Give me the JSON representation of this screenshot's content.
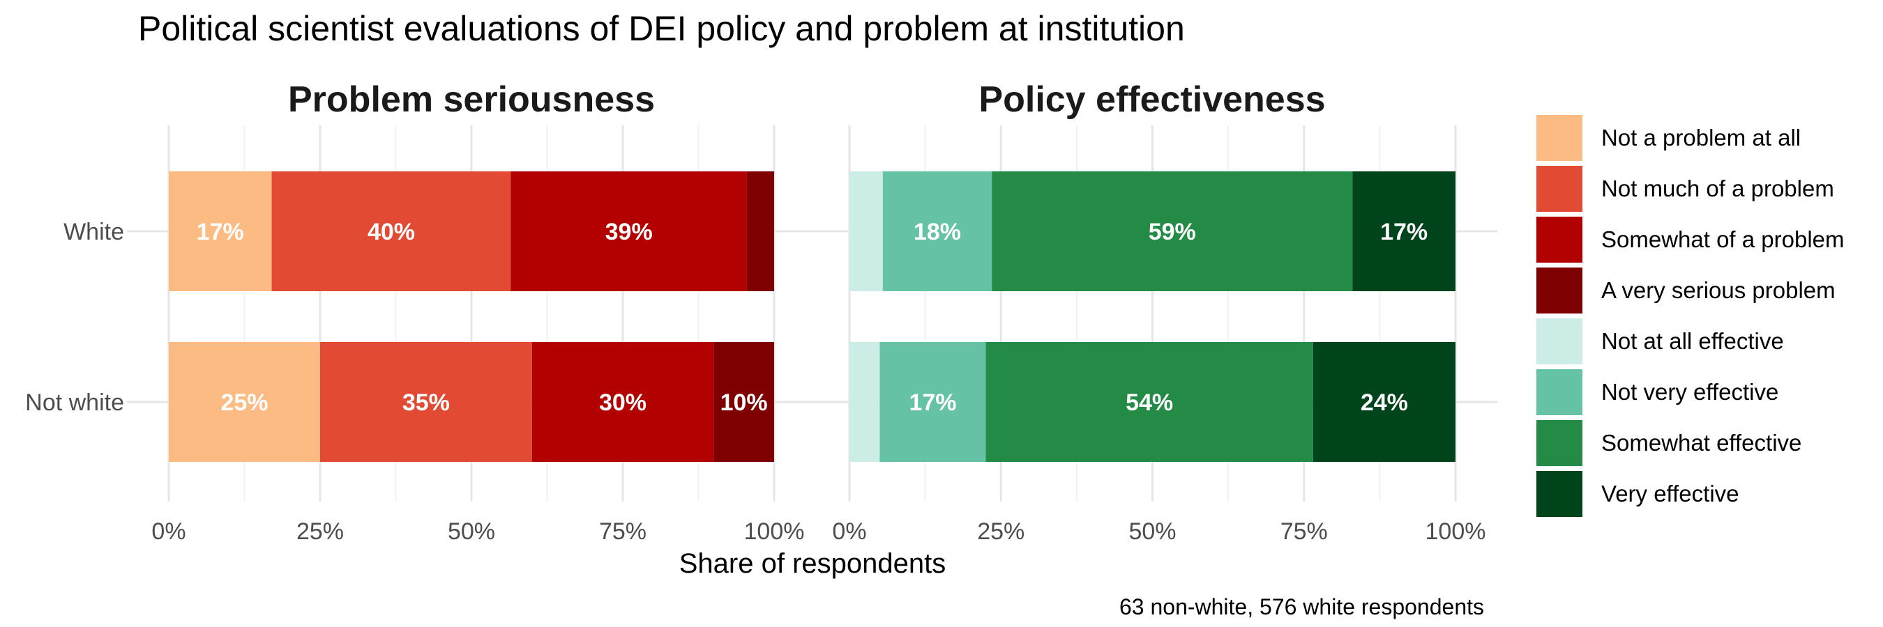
{
  "chart_data": {
    "type": "bar",
    "orientation": "horizontal",
    "stacked": true,
    "title": "Political scientist evaluations of DEI policy and problem at institution",
    "xlabel": "Share of respondents",
    "caption": "63 non-white, 576 white respondents",
    "xlim": [
      0,
      1
    ],
    "xticks": [
      "0%",
      "25%",
      "50%",
      "75%",
      "100%"
    ],
    "grid": true,
    "legend_position": "right",
    "categories": [
      "White",
      "Not white"
    ],
    "legend": [
      {
        "label": "Not a problem at all",
        "color": "#FDBB84"
      },
      {
        "label": "Not much of a problem",
        "color": "#E34A33"
      },
      {
        "label": "Somewhat of a problem",
        "color": "#B30000"
      },
      {
        "label": "A very serious problem",
        "color": "#7F0000"
      },
      {
        "label": "Not at all effective",
        "color": "#CCECE6"
      },
      {
        "label": "Not very effective",
        "color": "#66C2A4"
      },
      {
        "label": "Somewhat effective",
        "color": "#238B45"
      },
      {
        "label": "Very effective",
        "color": "#00441B"
      }
    ],
    "panels": [
      {
        "title": "Problem seriousness",
        "series": [
          {
            "name": "Not a problem at all",
            "color": "#FDBB84",
            "values": [
              0.17,
              0.25
            ],
            "labels": [
              "17%",
              "25%"
            ]
          },
          {
            "name": "Not much of a problem",
            "color": "#E34A33",
            "values": [
              0.395,
              0.35
            ],
            "labels": [
              "40%",
              "35%"
            ]
          },
          {
            "name": "Somewhat of a problem",
            "color": "#B30000",
            "values": [
              0.39,
              0.3
            ],
            "labels": [
              "39%",
              "30%"
            ]
          },
          {
            "name": "A very serious problem",
            "color": "#7F0000",
            "values": [
              0.045,
              0.1
            ],
            "labels": [
              "",
              "10%"
            ]
          }
        ]
      },
      {
        "title": "Policy effectiveness",
        "series": [
          {
            "name": "Not at all effective",
            "color": "#CCECE6",
            "values": [
              0.055,
              0.05
            ],
            "labels": [
              "",
              ""
            ]
          },
          {
            "name": "Not very effective",
            "color": "#66C2A4",
            "values": [
              0.18,
              0.175
            ],
            "labels": [
              "18%",
              "17%"
            ]
          },
          {
            "name": "Somewhat effective",
            "color": "#238B45",
            "values": [
              0.595,
              0.54
            ],
            "labels": [
              "59%",
              "54%"
            ]
          },
          {
            "name": "Very effective",
            "color": "#00441B",
            "values": [
              0.17,
              0.235
            ],
            "labels": [
              "17%",
              "24%"
            ]
          }
        ]
      }
    ]
  }
}
